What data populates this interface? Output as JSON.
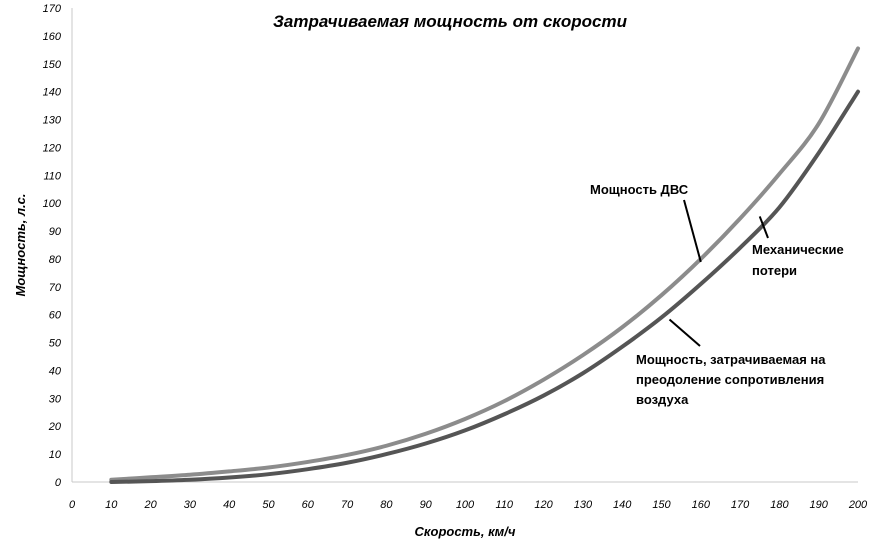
{
  "chart_data": {
    "type": "line",
    "title": "Затрачиваемая мощность от скорости",
    "xlabel": "Скорость, км/ч",
    "ylabel": "Мощность, л.с.",
    "xlim": [
      0,
      200
    ],
    "ylim": [
      0,
      170
    ],
    "xticks": [
      0,
      10,
      20,
      30,
      40,
      50,
      60,
      70,
      80,
      90,
      100,
      110,
      120,
      130,
      140,
      150,
      160,
      170,
      180,
      190,
      200
    ],
    "yticks": [
      0,
      10,
      20,
      30,
      40,
      50,
      60,
      70,
      80,
      90,
      100,
      110,
      120,
      130,
      140,
      150,
      160,
      170
    ],
    "grid": false,
    "x": [
      10,
      20,
      30,
      40,
      50,
      60,
      70,
      80,
      90,
      100,
      110,
      120,
      130,
      140,
      150,
      160,
      170,
      180,
      190,
      200
    ],
    "series": [
      {
        "name": "Мощность ДВС",
        "color": "#8c8c8c",
        "values": [
          0.8,
          1.7,
          2.6,
          3.8,
          5.2,
          7.2,
          9.7,
          13.0,
          17.3,
          22.6,
          29.0,
          36.7,
          45.5,
          55.5,
          67.0,
          80.0,
          94.5,
          110.5,
          128.5,
          155.5
        ]
      },
      {
        "name": "Мощность, затрачиваемая на преодоление сопротивления воздуха",
        "color": "#555555",
        "values": [
          0.0,
          0.3,
          0.8,
          1.6,
          2.8,
          4.6,
          6.9,
          10.0,
          13.8,
          18.5,
          24.3,
          31.0,
          39.0,
          48.5,
          59.0,
          71.0,
          84.0,
          98.5,
          118.0,
          140.0
        ]
      }
    ],
    "annotations": [
      {
        "text_lines": [
          "Мощность ДВС"
        ],
        "target_series": 0,
        "target_x": 160
      },
      {
        "text_lines": [
          "Механические",
          "потери"
        ],
        "target_x": 175
      },
      {
        "text_lines": [
          "Мощность, затрачиваемая на",
          "преодоление сопротивления",
          "воздуха"
        ],
        "target_series": 1,
        "target_x": 150
      }
    ]
  }
}
